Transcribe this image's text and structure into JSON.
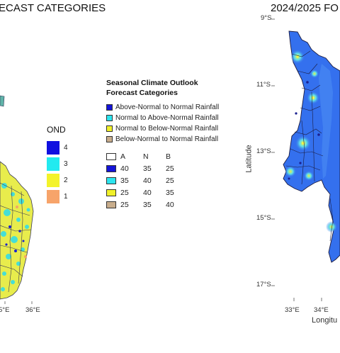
{
  "left_panel": {
    "title": "ECAST CATEGORIES",
    "x_ticks": [
      "5°E",
      "36°E"
    ],
    "ond_legend": {
      "title": "OND",
      "items": [
        {
          "label": "4",
          "color": "#1010e0"
        },
        {
          "label": "3",
          "color": "#22eaf0"
        },
        {
          "label": "2",
          "color": "#f3f32a"
        },
        {
          "label": "1",
          "color": "#f7a46a"
        }
      ]
    }
  },
  "center_legend": {
    "title_line1": "Seasonal Climate Outlook",
    "title_line2": "Forecast Categories",
    "categories": [
      {
        "label": "Above-Normal to Normal Rainfall",
        "color": "#1414d8"
      },
      {
        "label": "Normal to Above-Normal Rainfall",
        "color": "#2ce4ee"
      },
      {
        "label": "Normal to Below-Normal Rainfall",
        "color": "#f0f02a"
      },
      {
        "label": "Below-Normal to Normal Rainfall",
        "color": "#c8ad8c"
      }
    ],
    "prob_header": {
      "a": "A",
      "n": "N",
      "b": "B"
    },
    "prob_rows": [
      {
        "a": "40",
        "n": "35",
        "b": "25",
        "color": "#1414d8"
      },
      {
        "a": "35",
        "n": "40",
        "b": "25",
        "color": "#2ce4ee"
      },
      {
        "a": "25",
        "n": "40",
        "b": "35",
        "color": "#f0f02a"
      },
      {
        "a": "25",
        "n": "35",
        "b": "40",
        "color": "#c8ad8c"
      }
    ]
  },
  "right_panel": {
    "title": "2024/2025 FO",
    "y_ticks": [
      "9°S",
      "11°S",
      "13°S",
      "15°S",
      "17°S"
    ],
    "x_ticks": [
      "33°E",
      "34°E"
    ],
    "y_axis_label": "Latitude",
    "x_axis_label": "Longitu"
  }
}
